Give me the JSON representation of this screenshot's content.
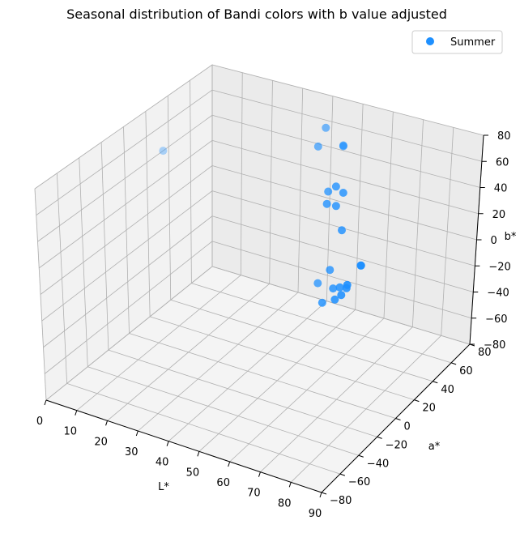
{
  "chart_data": {
    "type": "scatter",
    "projection": "3d",
    "title": "Seasonal distribution of Bandi colors with b value adjusted",
    "xlabel": "L*",
    "ylabel": "a*",
    "zlabel": "b*",
    "xlim": [
      0,
      90
    ],
    "ylim": [
      -80,
      80
    ],
    "zlim": [
      -80,
      80
    ],
    "xticks": [
      "0",
      "10",
      "20",
      "30",
      "40",
      "50",
      "60",
      "70",
      "80",
      "90"
    ],
    "yticks": [
      "−80",
      "−60",
      "−40",
      "−20",
      "0",
      "20",
      "40",
      "60",
      "80"
    ],
    "zticks": [
      "−80",
      "−60",
      "−40",
      "−20",
      "0",
      "20",
      "40",
      "60",
      "80"
    ],
    "grid": true,
    "legend_position": "top-right",
    "color": "#1e90ff",
    "series": [
      {
        "name": "Summer",
        "points": [
          {
            "L": 38,
            "a": 80,
            "b": 54
          },
          {
            "L": 44,
            "a": 80,
            "b": 44
          },
          {
            "L": 46,
            "a": 74,
            "b": 48
          },
          {
            "L": 44,
            "a": 55,
            "b": 57
          },
          {
            "L": 0,
            "a": 35,
            "b": 40
          },
          {
            "L": 59,
            "a": 20,
            "b": 50
          },
          {
            "L": 64,
            "a": 12,
            "b": 60
          },
          {
            "L": 67,
            "a": 10,
            "b": 58
          },
          {
            "L": 65,
            "a": 0,
            "b": 54
          },
          {
            "L": 67,
            "a": 3,
            "b": 52
          },
          {
            "L": 70,
            "a": 0,
            "b": 38
          },
          {
            "L": 78,
            "a": -5,
            "b": 20
          },
          {
            "L": 79,
            "a": -8,
            "b": 22
          },
          {
            "L": 65,
            "a": 5,
            "b": 5
          },
          {
            "L": 58,
            "a": 15,
            "b": -14
          },
          {
            "L": 73,
            "a": -10,
            "b": 5
          },
          {
            "L": 69,
            "a": -4,
            "b": -1
          },
          {
            "L": 69,
            "a": -15,
            "b": -5
          },
          {
            "L": 79,
            "a": -28,
            "b": 12
          },
          {
            "L": 80,
            "a": -26,
            "b": 16
          },
          {
            "L": 77,
            "a": -28,
            "b": 8
          },
          {
            "L": 82,
            "a": -32,
            "b": 22
          }
        ]
      }
    ]
  }
}
